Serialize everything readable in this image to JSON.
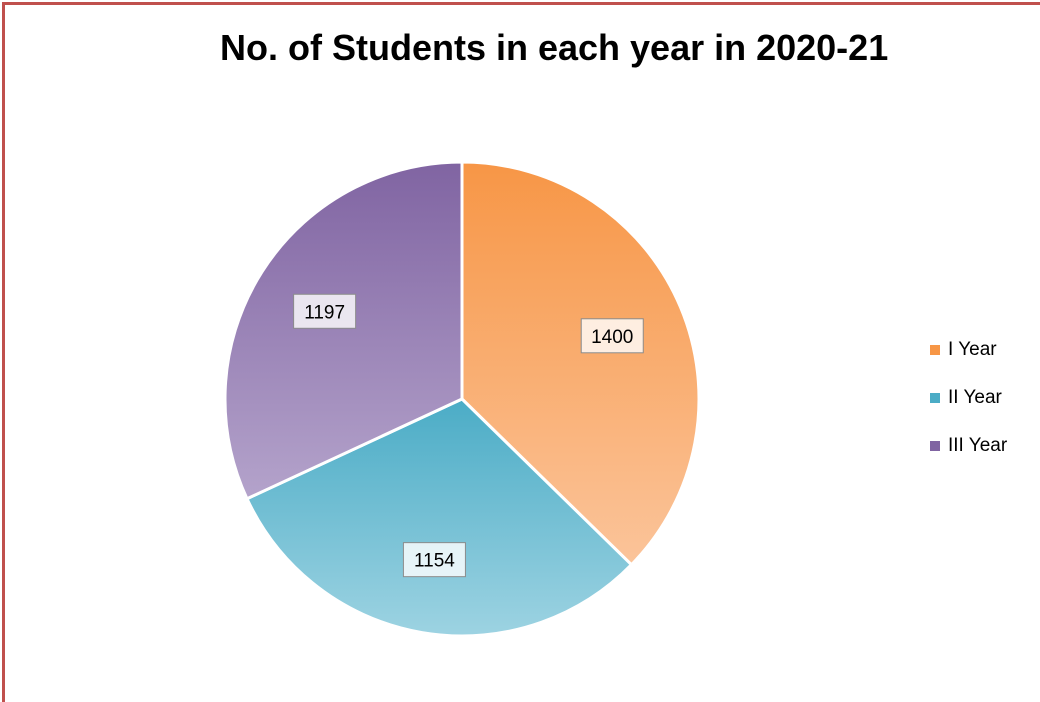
{
  "chart_data": {
    "type": "pie",
    "title": "No. of Students in each year in 2020-21",
    "categories": [
      "I Year",
      "II Year",
      "III Year"
    ],
    "values": [
      1400,
      1154,
      1197
    ],
    "colors": [
      "#f79646",
      "#4bacc6",
      "#8064a2"
    ],
    "legend": "right",
    "data_labels": [
      "1400",
      "1154",
      "1197"
    ]
  },
  "frame": {
    "border_color": "#c0504d"
  }
}
